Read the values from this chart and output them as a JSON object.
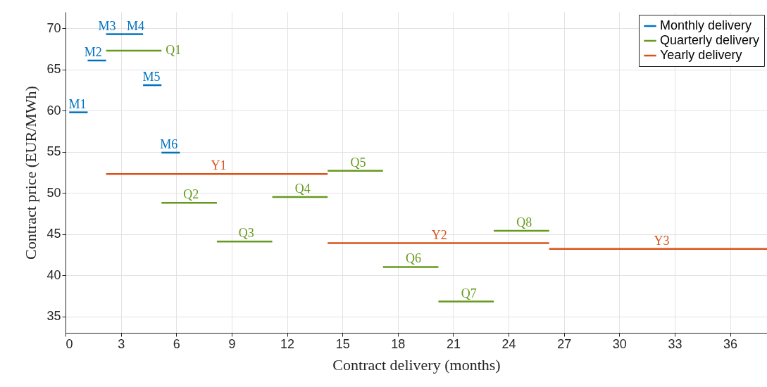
{
  "chart_data": {
    "type": "line",
    "xlabel": "Contract delivery (months)",
    "ylabel": "Contract price (EUR/MWh)",
    "xlim": [
      0,
      38
    ],
    "xticks": [
      0,
      3,
      6,
      9,
      12,
      15,
      18,
      21,
      24,
      27,
      30,
      33,
      36
    ],
    "ylim": [
      33,
      72
    ],
    "yticks": [
      35,
      40,
      45,
      50,
      55,
      60,
      65,
      70
    ],
    "grid": true,
    "legend": "top right",
    "marker": "none",
    "line_style": "solid",
    "series": [
      {
        "name": "Monthly delivery",
        "color": "#0072bd",
        "x": [
          0.2,
          1.2,
          null,
          1.2,
          2.2,
          null,
          2.2,
          3.2,
          null,
          3.2,
          4.2,
          null,
          4.2,
          5.2,
          null,
          5.2,
          6.2
        ],
        "values": [
          59.8,
          59.8,
          null,
          66.1,
          66.1,
          null,
          69.3,
          69.3,
          null,
          69.3,
          69.3,
          null,
          63.1,
          63.1,
          null,
          54.9,
          54.9
        ]
      },
      {
        "name": "Quarterly delivery",
        "color": "#669a1f",
        "x": [
          2.2,
          5.2,
          null,
          5.2,
          8.2,
          null,
          8.2,
          11.2,
          null,
          11.2,
          14.2,
          null,
          14.2,
          17.2,
          null,
          17.2,
          20.2,
          null,
          20.2,
          23.2,
          null,
          23.2,
          26.2
        ],
        "values": [
          67.3,
          67.3,
          null,
          48.8,
          48.8,
          null,
          44.1,
          44.1,
          null,
          49.5,
          49.5,
          null,
          52.7,
          52.7,
          null,
          41.0,
          41.0,
          null,
          36.8,
          36.8,
          null,
          45.4,
          45.4
        ]
      },
      {
        "name": "Yearly delivery",
        "color": "#d95319",
        "x": [
          2.2,
          14.2,
          null,
          14.2,
          26.2,
          null,
          26.2,
          38
        ],
        "values": [
          52.3,
          52.3,
          null,
          43.9,
          43.9,
          null,
          43.2,
          43.2
        ]
      }
    ],
    "annotations": [
      {
        "text": "M1",
        "x": 0.65,
        "y": 59.8
      },
      {
        "text": "M2",
        "x": 1.5,
        "y": 66.1
      },
      {
        "text": "M3",
        "x": 2.25,
        "y": 69.3
      },
      {
        "text": "M4",
        "x": 3.8,
        "y": 69.3
      },
      {
        "text": "M5",
        "x": 4.65,
        "y": 63.1
      },
      {
        "text": "M6",
        "x": 5.6,
        "y": 54.9
      },
      {
        "text": "Q1",
        "x": 5.2,
        "y": 67.3
      },
      {
        "text": "Q2",
        "x": 6.8,
        "y": 48.8
      },
      {
        "text": "Q3",
        "x": 9.8,
        "y": 44.1
      },
      {
        "text": "Q4",
        "x": 12.85,
        "y": 49.5
      },
      {
        "text": "Q5",
        "x": 15.85,
        "y": 52.7
      },
      {
        "text": "Q6",
        "x": 18.85,
        "y": 41.0
      },
      {
        "text": "Q7",
        "x": 21.85,
        "y": 36.8
      },
      {
        "text": "Q8",
        "x": 24.85,
        "y": 45.4
      },
      {
        "text": "Y1",
        "x": 8.3,
        "y": 52.3
      },
      {
        "text": "Y2",
        "x": 20.25,
        "y": 43.9
      },
      {
        "text": "Y3",
        "x": 32.3,
        "y": 43.2
      }
    ]
  }
}
